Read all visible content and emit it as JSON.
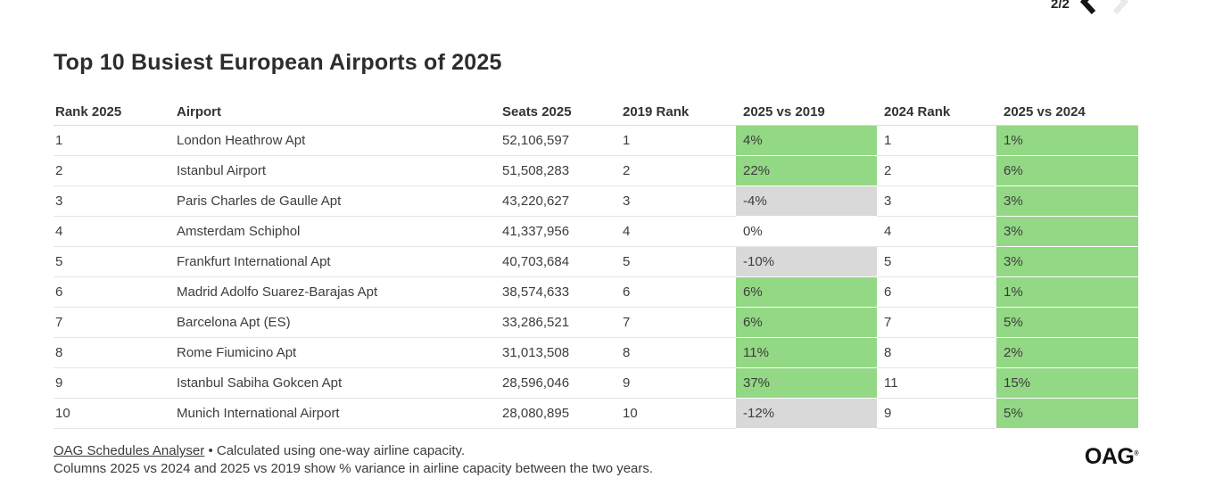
{
  "pagination": {
    "page_label": "2/2",
    "prev_icon": "chevron-left",
    "next_icon": "chevron-right"
  },
  "title": "Top 10 Busiest European Airports of 2025",
  "chart_data": {
    "type": "table",
    "title": "Top 10 Busiest European Airports of 2025",
    "columns": [
      "Rank 2025",
      "Airport",
      "Seats 2025",
      "2019 Rank",
      "2025 vs 2019",
      "2024 Rank",
      "2025 vs 2024"
    ],
    "rows": [
      [
        "1",
        "London Heathrow Apt",
        "52,106,597",
        "1",
        "4%",
        "1",
        "1%"
      ],
      [
        "2",
        "Istanbul Airport",
        "51,508,283",
        "2",
        "22%",
        "2",
        "6%"
      ],
      [
        "3",
        "Paris Charles de Gaulle Apt",
        "43,220,627",
        "3",
        "-4%",
        "3",
        "3%"
      ],
      [
        "4",
        "Amsterdam Schiphol",
        "41,337,956",
        "4",
        "0%",
        "4",
        "3%"
      ],
      [
        "5",
        "Frankfurt International Apt",
        "40,703,684",
        "5",
        "-10%",
        "5",
        "3%"
      ],
      [
        "6",
        "Madrid Adolfo Suarez-Barajas Apt",
        "38,574,633",
        "6",
        "6%",
        "6",
        "1%"
      ],
      [
        "7",
        "Barcelona Apt (ES)",
        "33,286,521",
        "7",
        "6%",
        "7",
        "5%"
      ],
      [
        "8",
        "Rome Fiumicino Apt",
        "31,013,508",
        "8",
        "11%",
        "8",
        "2%"
      ],
      [
        "9",
        "Istanbul Sabiha Gokcen Apt",
        "28,596,046",
        "9",
        "37%",
        "11",
        "15%"
      ],
      [
        "10",
        "Munich International Airport",
        "28,080,895",
        "10",
        "-12%",
        "9",
        "5%"
      ]
    ],
    "variance_column_indexes": [
      4,
      6
    ],
    "notes": "Variance cells: positive = green fill, negative = gray fill, zero = no fill"
  },
  "colors": {
    "positive_bg": "#93d884",
    "negative_bg": "#d9d9d9",
    "zero_bg": "transparent"
  },
  "footer": {
    "source_link": "OAG Schedules Analyser",
    "bullet": "•",
    "line1_rest": "Calculated using one-way airline capacity.",
    "line2": "Columns 2025 vs 2024 and 2025 vs 2019 show % variance in airline capacity between the two years.",
    "logo_text": "OAG",
    "logo_mark": "®"
  }
}
